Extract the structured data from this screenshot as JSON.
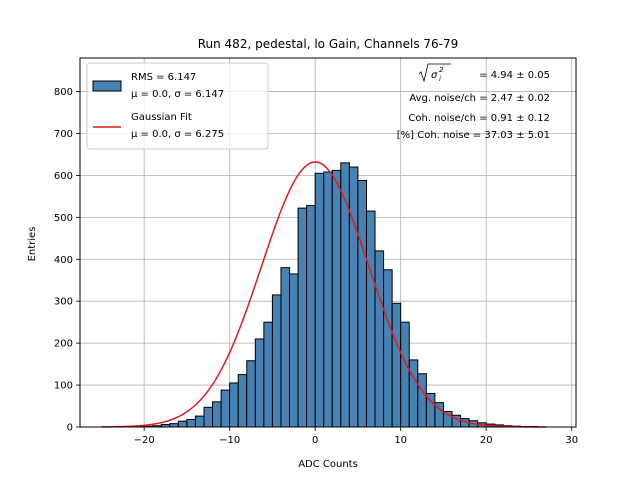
{
  "chart_data": {
    "type": "bar",
    "title": "Run 482, pedestal, lo Gain, Channels 76-79",
    "xlabel": "ADC Counts",
    "ylabel": "Entries",
    "xlim": [
      -27.5,
      30.5
    ],
    "ylim": [
      0,
      880
    ],
    "grid": true,
    "bin_width": 1,
    "xticks": [
      -20,
      -10,
      0,
      10,
      20,
      30
    ],
    "yticks": [
      0,
      100,
      200,
      300,
      400,
      500,
      600,
      700,
      800
    ],
    "xtick_labels": [
      "−20",
      "−10",
      "0",
      "10",
      "20",
      "30"
    ],
    "ytick_labels": [
      "0",
      "100",
      "200",
      "300",
      "400",
      "500",
      "600",
      "700",
      "800"
    ],
    "histogram": {
      "name": "RMS = 6.147",
      "mu_label": "μ = 0.0, σ = 6.147",
      "color": "#4682b4",
      "edge_color": "#000000",
      "bin_left_edges": [
        -25,
        -24,
        -23,
        -22,
        -21,
        -20,
        -19,
        -18,
        -17,
        -16,
        -15,
        -14,
        -13,
        -12,
        -11,
        -10,
        -9,
        -8,
        -7,
        -6,
        -5,
        -4,
        -3,
        -2,
        -1,
        0,
        1,
        2,
        3,
        4,
        5,
        6,
        7,
        8,
        9,
        10,
        11,
        12,
        13,
        14,
        15,
        16,
        17,
        18,
        19,
        20,
        21,
        22,
        23,
        24,
        25,
        26
      ],
      "counts": [
        0,
        0,
        1,
        1,
        1,
        2,
        3,
        6,
        8,
        14,
        18,
        26,
        47,
        60,
        88,
        105,
        125,
        158,
        210,
        250,
        315,
        380,
        365,
        522,
        528,
        605,
        608,
        612,
        630,
        620,
        588,
        515,
        420,
        375,
        295,
        250,
        160,
        127,
        80,
        58,
        37,
        28,
        20,
        15,
        10,
        7,
        5,
        3,
        2,
        1,
        1,
        0
      ]
    },
    "fit": {
      "name": "Gaussian Fit",
      "mu_label": "μ = 0.0, σ = 6.275",
      "mu": 0.0,
      "sigma": 6.275,
      "amplitude": 632,
      "x_range": [
        -25,
        27
      ],
      "color": "#e31a1c"
    },
    "annotations": {
      "sigma_value": "= 4.94 ± 0.05",
      "avg_noise": "Avg. noise/ch = 2.47 ± 0.02",
      "coh_noise": "Coh. noise/ch = 0.91 ± 0.12",
      "coh_percent": "[%] Coh. noise = 37.03 ± 5.01"
    }
  }
}
